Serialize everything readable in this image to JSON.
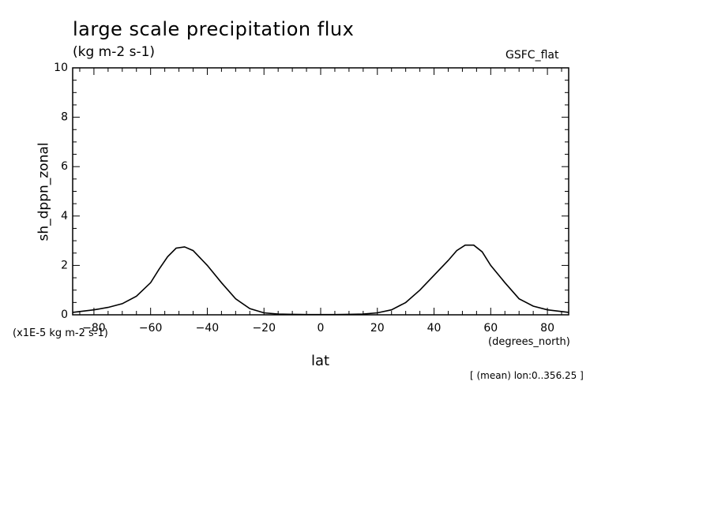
{
  "chart_data": {
    "type": "line",
    "title": "large scale precipitation flux",
    "units": "(kg m-2 s-1)",
    "dataset": "GSFC_flat",
    "xlabel": "lat",
    "xlabel_units": "(degrees_north)",
    "ylabel": "sh_dppn_zonal",
    "scale_note": "(x1E-5 kg m-2 s-1)",
    "footnote": "[ (mean) lon:0..356.25 ]",
    "xlim": [
      -87.5,
      87.5
    ],
    "ylim": [
      0,
      10
    ],
    "xticks": [
      -80,
      -60,
      -40,
      -20,
      0,
      20,
      40,
      60,
      80
    ],
    "xtick_labels": [
      "-80",
      "-60",
      "-40",
      "-20",
      "0",
      "20",
      "40",
      "60",
      "80"
    ],
    "yticks": [
      0,
      2,
      4,
      6,
      8,
      10
    ],
    "ytick_labels": [
      "0",
      "2",
      "4",
      "6",
      "8",
      "10"
    ],
    "grid": false,
    "series": [
      {
        "x": [
          -87.5,
          -80,
          -75,
          -70,
          -65,
          -60,
          -57,
          -54,
          -51,
          -48,
          -45,
          -40,
          -35,
          -30,
          -25,
          -20,
          -15,
          -10,
          -5,
          0,
          5,
          10,
          15,
          20,
          25,
          30,
          35,
          40,
          45,
          48,
          51,
          54,
          57,
          60,
          65,
          70,
          75,
          80,
          87.5
        ],
        "y": [
          0.1,
          0.2,
          0.3,
          0.45,
          0.75,
          1.3,
          1.85,
          2.35,
          2.7,
          2.75,
          2.6,
          2.0,
          1.3,
          0.65,
          0.25,
          0.08,
          0.03,
          0.02,
          0.01,
          0.01,
          0.01,
          0.02,
          0.03,
          0.08,
          0.2,
          0.5,
          1.0,
          1.6,
          2.2,
          2.6,
          2.82,
          2.82,
          2.55,
          2.0,
          1.3,
          0.65,
          0.35,
          0.2,
          0.1
        ]
      }
    ]
  }
}
